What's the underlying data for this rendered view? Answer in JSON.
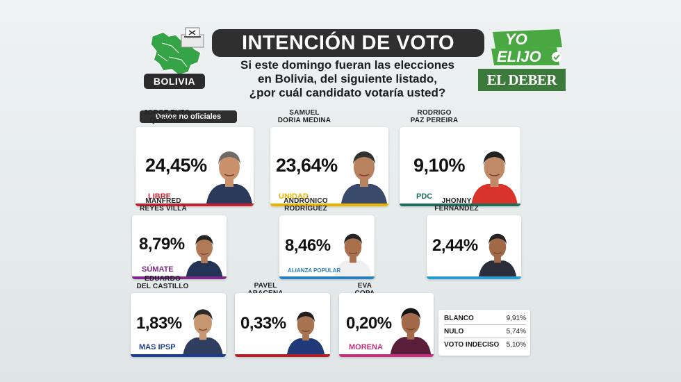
{
  "header": {
    "country": "BOLIVIA",
    "title": "INTENCIÓN DE VOTO",
    "question_lines": [
      "Si este domingo fueran las elecciones",
      "en Bolivia, del siguiente listado,",
      "¿por cuál candidato votaría usted?"
    ],
    "brand_line1": "YO",
    "brand_line2": "ELIJO",
    "publisher": "EL DEBER",
    "note": "Datos no oficiales"
  },
  "colors": {
    "libre": "#c8202e",
    "unidad": "#e8b400",
    "pdc": "#1f6f5c",
    "sumate": "#7a2a86",
    "alianza": "#2a7fbd",
    "fernandez": "#2a9bd1",
    "mas": "#1c3d8c",
    "aracena": "#b51e24",
    "morena": "#c2307b",
    "map_green": "#35a447",
    "brand_green": "#4aa842"
  },
  "chart_data": {
    "type": "bar",
    "categories": [
      "JORGE TUTO QUIROGA",
      "SAMUEL DORIA MEDINA",
      "RODRIGO PAZ PEREIRA",
      "MANFRED REYES VILLA",
      "ANDRÓNICO RODRÍGUEZ",
      "JHONNY FERNÁNDEZ",
      "EDUARDO DEL CASTILLO",
      "PAVEL ARACENA",
      "EVA COPA"
    ],
    "series": [
      {
        "values": [
          24.45,
          23.64,
          9.1,
          8.79,
          8.46,
          2.44,
          1.83,
          0.33,
          0.2
        ]
      }
    ],
    "other": [
      {
        "label": "BLANCO",
        "value": 9.91
      },
      {
        "label": "NULO",
        "value": 5.74
      },
      {
        "label": "VOTO INDECISO",
        "value": 5.1
      }
    ]
  },
  "candidates": [
    {
      "name1": "JORGE TUTO",
      "name2": "QUIROGA",
      "pct": "24,45%",
      "party": "LIBRE",
      "color": "#c8202e"
    },
    {
      "name1": "SAMUEL",
      "name2": "DORIA MEDINA",
      "pct": "23,64%",
      "party": "UNIDAD",
      "color": "#e8b400"
    },
    {
      "name1": "RODRIGO",
      "name2": "PAZ PEREIRA",
      "pct": "9,10%",
      "party": "PDC",
      "color": "#1f6f5c"
    },
    {
      "name1": "MANFRED",
      "name2": "REYES VILLA",
      "pct": "8,79%",
      "party": "SÚMATE",
      "color": "#7a2a86"
    },
    {
      "name1": "ANDRÓNICO",
      "name2": "RODRÍGUEZ",
      "pct": "8,46%",
      "party": "ALIANZA POPULAR",
      "color": "#2a7fbd"
    },
    {
      "name1": "JHONNY",
      "name2": "FERNÁNDEZ",
      "pct": "2,44%",
      "party": "",
      "color": "#2a9bd1"
    },
    {
      "name1": "EDUARDO",
      "name2": "DEL CASTILLO",
      "pct": "1,83%",
      "party": "MAS IPSP",
      "color": "#1c3d8c"
    },
    {
      "name1": "PAVEL ARACENA",
      "name2": "",
      "pct": "0,33%",
      "party": "",
      "color": "#b51e24"
    },
    {
      "name1": "EVA COPA",
      "name2": "",
      "pct": "0,20%",
      "party": "MORENA",
      "color": "#c2307b"
    }
  ],
  "others": [
    {
      "label": "BLANCO",
      "value": "9,91%"
    },
    {
      "label": "NULO",
      "value": "5,74%"
    },
    {
      "label": "VOTO INDECISO",
      "value": "5,10%"
    }
  ]
}
